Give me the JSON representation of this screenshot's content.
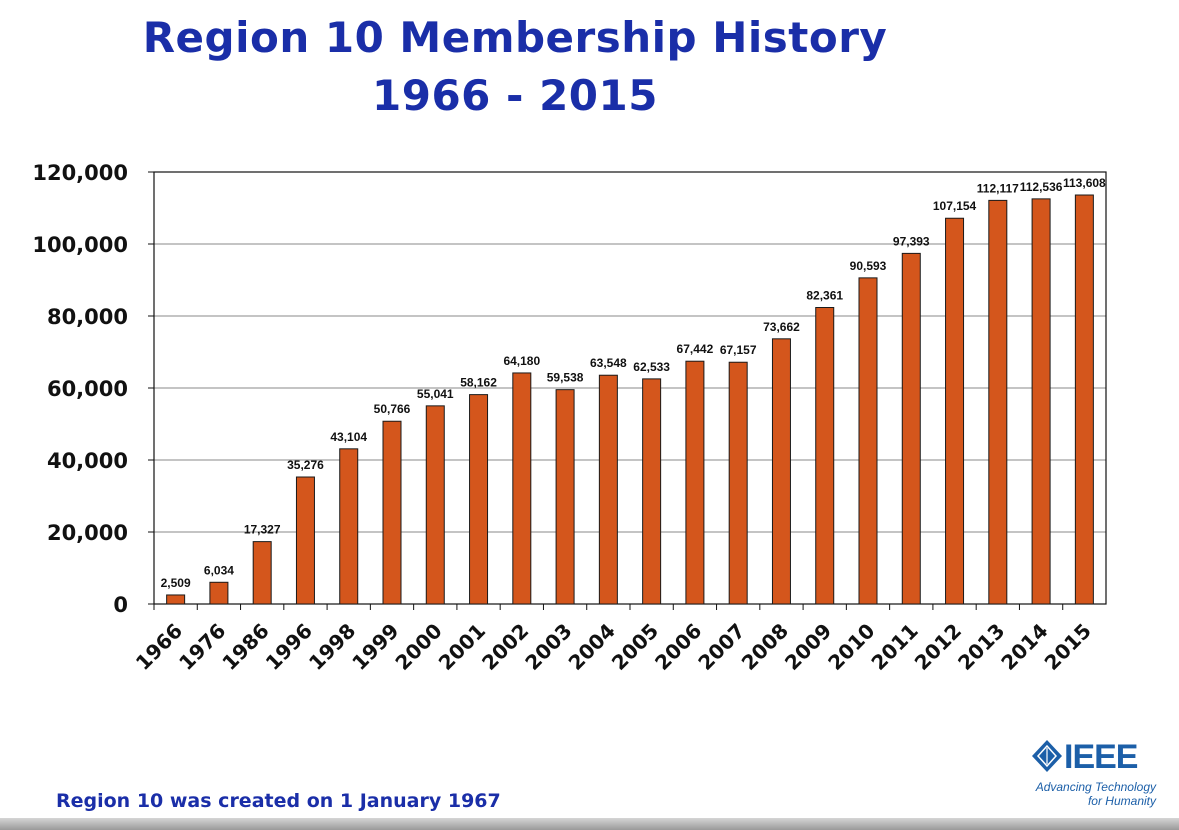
{
  "header": {
    "title_line1": "Region 10 Membership History",
    "title_line2": "1966 - 2015"
  },
  "footnote": "Region 10 was created on 1 January 1967",
  "logo": {
    "icon": "ieee-diamond-icon",
    "text": "IEEE",
    "tagline_line1": "Advancing Technology",
    "tagline_line2": "for Humanity"
  },
  "colors": {
    "title": "#1a2ea8",
    "bar": "#d4561c",
    "bar_outline": "#1a1a1a",
    "logo": "#1c5fa8"
  },
  "chart_data": {
    "type": "bar",
    "title": "Region 10 Membership History 1966 - 2015",
    "xlabel": "",
    "ylabel": "",
    "ylim": [
      0,
      120000
    ],
    "yticks": [
      0,
      20000,
      40000,
      60000,
      80000,
      100000,
      120000
    ],
    "ytick_labels": [
      "0",
      "20,000",
      "40,000",
      "60,000",
      "80,000",
      "100,000",
      "120,000"
    ],
    "grid": "horizontal",
    "legend": "none",
    "categories": [
      "1966",
      "1976",
      "1986",
      "1996",
      "1998",
      "1999",
      "2000",
      "2001",
      "2002",
      "2003",
      "2004",
      "2005",
      "2006",
      "2007",
      "2008",
      "2009",
      "2010",
      "2011",
      "2012",
      "2013",
      "2014",
      "2015"
    ],
    "values": [
      2509,
      6034,
      17327,
      35276,
      43104,
      50766,
      55041,
      58162,
      64180,
      59538,
      63548,
      62533,
      67442,
      67157,
      73662,
      82361,
      90593,
      97393,
      107154,
      112117,
      112536,
      113608
    ],
    "data_labels": [
      "2,509",
      "6,034",
      "17,327",
      "35,276",
      "43,104",
      "50,766",
      "55,041",
      "58,162",
      "64,180",
      "59,538",
      "63,548",
      "62,533",
      "67,442",
      "67,157",
      "73,662",
      "82,361",
      "90,593",
      "97,393",
      "107,154",
      "112,117",
      "112,536",
      "113,608"
    ]
  }
}
